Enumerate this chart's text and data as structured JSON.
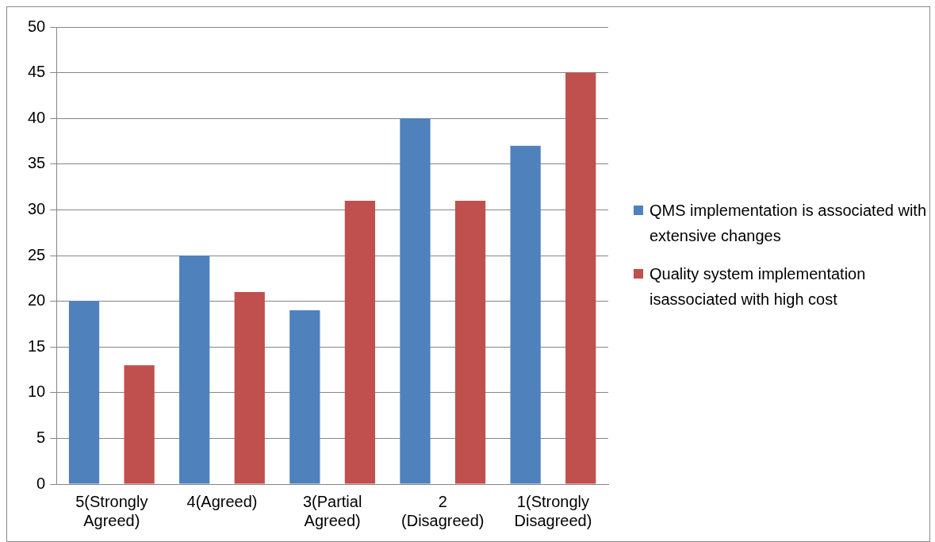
{
  "chart_data": {
    "type": "bar",
    "categories": [
      "5(Strongly Agreed)",
      "4(Agreed)",
      "3(Partial Agreed)",
      "2 (Disagreed)",
      "1(Strongly Disagreed)"
    ],
    "series": [
      {
        "name": "QMS implementation is associated with extensive changes",
        "color": "#4f81bd",
        "values": [
          20,
          25,
          19,
          40,
          37
        ]
      },
      {
        "name": "Quality system implementation isassociated with high cost",
        "color": "#c0504d",
        "values": [
          13,
          21,
          31,
          31,
          45
        ]
      }
    ],
    "ylim": [
      0,
      50
    ],
    "yticks": [
      0,
      5,
      10,
      15,
      20,
      25,
      30,
      35,
      40,
      45,
      50
    ],
    "grid": "y",
    "legend": "right"
  }
}
